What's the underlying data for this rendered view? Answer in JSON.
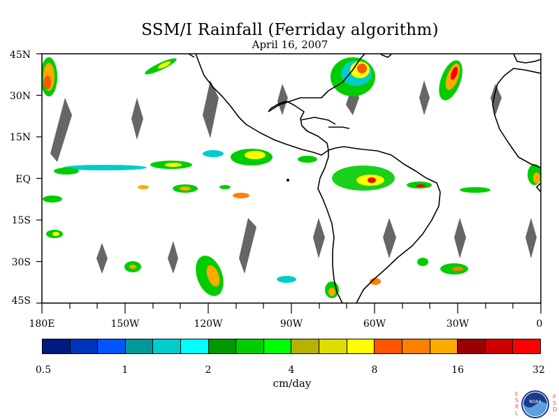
{
  "title": "SSM/I Rainfall (Ferriday algorithm)",
  "subtitle": "April 16, 2007",
  "map": {
    "lat_labels": [
      "45N",
      "30N",
      "15N",
      "EQ",
      "15S",
      "30S",
      "45S"
    ],
    "lat_values": [
      45,
      30,
      15,
      0,
      -15,
      -30,
      -45
    ],
    "lon_labels": [
      "180E",
      "150W",
      "120W",
      "90W",
      "60W",
      "30W",
      "0"
    ],
    "lon_values": [
      -180,
      -150,
      -120,
      -90,
      -60,
      -30,
      0
    ],
    "missing_swath_color": "#666666"
  },
  "colorbar": {
    "colors": [
      "#001a80",
      "#0033bb",
      "#0055ff",
      "#009999",
      "#00cccc",
      "#00ffff",
      "#009900",
      "#00cc00",
      "#00ff00",
      "#b3b300",
      "#dddd00",
      "#ffff00",
      "#ff5500",
      "#ff8000",
      "#ffaa00",
      "#990000",
      "#cc0000",
      "#ff0000"
    ],
    "tick_labels": [
      "0.5",
      "1",
      "2",
      "4",
      "8",
      "16",
      "32"
    ],
    "units": "cm/day"
  },
  "logo": {
    "name": "noaa-logo",
    "text": "NOAA",
    "left_letters": "ESRL",
    "right_letters": "PSD"
  }
}
